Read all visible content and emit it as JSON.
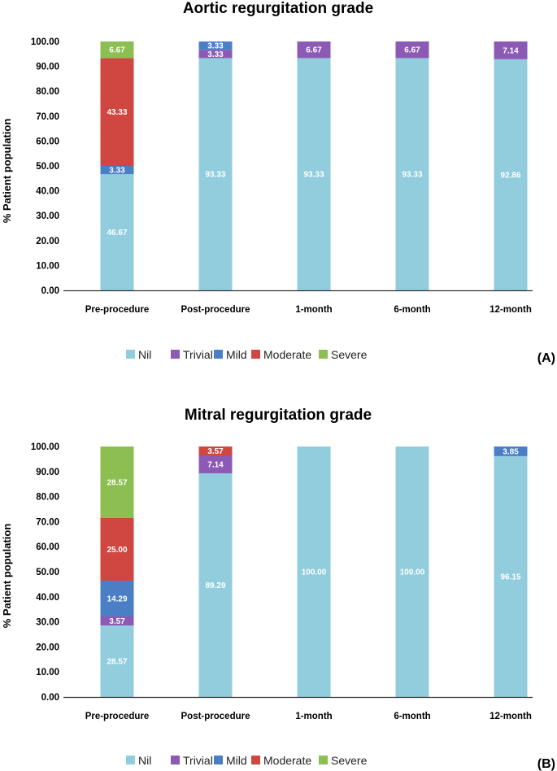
{
  "colors": {
    "Nil": "#92cddd",
    "Trivial": "#8c5ab4",
    "Mild": "#4a7fc6",
    "Moderate": "#cf4740",
    "Severe": "#8cbe52"
  },
  "chart_data": [
    {
      "type": "bar",
      "stacked": true,
      "title": "Aortic regurgitation grade",
      "ylabel": "% Patient population",
      "xlabel": "",
      "panel": "(A)",
      "ylim": [
        0,
        100
      ],
      "yticks": [
        "0.00",
        "10.00",
        "20.00",
        "30.00",
        "40.00",
        "50.00",
        "60.00",
        "70.00",
        "80.00",
        "90.00",
        "100.00"
      ],
      "categories": [
        "Pre-procedure",
        "Post-procedure",
        "1-month",
        "6-month",
        "12-month"
      ],
      "legend": [
        "Nil",
        "Trivial",
        "Mild",
        "Moderate",
        "Severe"
      ],
      "series": [
        {
          "name": "Nil",
          "values": [
            46.67,
            93.33,
            93.33,
            93.33,
            92.86
          ],
          "labels": [
            "46.67",
            "93.33",
            "93.33",
            "93.33",
            "92.86"
          ]
        },
        {
          "name": "Trivial",
          "values": [
            0,
            3.33,
            6.67,
            6.67,
            7.14
          ],
          "labels": [
            "",
            "3.33",
            "6.67",
            "6.67",
            "7.14"
          ]
        },
        {
          "name": "Mild",
          "values": [
            3.33,
            3.33,
            0,
            0,
            0
          ],
          "labels": [
            "3.33",
            "3.33",
            "",
            "",
            ""
          ]
        },
        {
          "name": "Moderate",
          "values": [
            43.33,
            0,
            0,
            0,
            0
          ],
          "labels": [
            "43.33",
            "",
            "",
            "",
            ""
          ]
        },
        {
          "name": "Severe",
          "values": [
            6.67,
            0,
            0,
            0,
            0
          ],
          "labels": [
            "6.67",
            "",
            "",
            "",
            ""
          ]
        }
      ]
    },
    {
      "type": "bar",
      "stacked": true,
      "title": "Mitral regurgitation grade",
      "ylabel": "% Patient population",
      "xlabel": "",
      "panel": "(B)",
      "ylim": [
        0,
        100
      ],
      "yticks": [
        "0.00",
        "10.00",
        "20.00",
        "30.00",
        "40.00",
        "50.00",
        "60.00",
        "70.00",
        "80.00",
        "90.00",
        "100.00"
      ],
      "categories": [
        "Pre-procedure",
        "Post-procedure",
        "1-month",
        "6-month",
        "12-month"
      ],
      "legend": [
        "Nil",
        "Trivial",
        "Mild",
        "Moderate",
        "Severe"
      ],
      "series": [
        {
          "name": "Nil",
          "values": [
            28.57,
            89.29,
            100.0,
            100.0,
            96.15
          ],
          "labels": [
            "28.57",
            "89.29",
            "100.00",
            "100.00",
            "96.15"
          ]
        },
        {
          "name": "Trivial",
          "values": [
            3.57,
            7.14,
            0,
            0,
            0
          ],
          "labels": [
            "3.57",
            "7.14",
            "",
            "",
            ""
          ]
        },
        {
          "name": "Mild",
          "values": [
            14.29,
            0,
            0,
            0,
            3.85
          ],
          "labels": [
            "14.29",
            "",
            "",
            "",
            "3.85"
          ]
        },
        {
          "name": "Moderate",
          "values": [
            25.0,
            3.57,
            0,
            0,
            0
          ],
          "labels": [
            "25.00",
            "3.57",
            "",
            "",
            ""
          ]
        },
        {
          "name": "Severe",
          "values": [
            28.57,
            0,
            0,
            0,
            0
          ],
          "labels": [
            "28.57",
            "",
            "",
            "",
            ""
          ]
        }
      ]
    }
  ]
}
